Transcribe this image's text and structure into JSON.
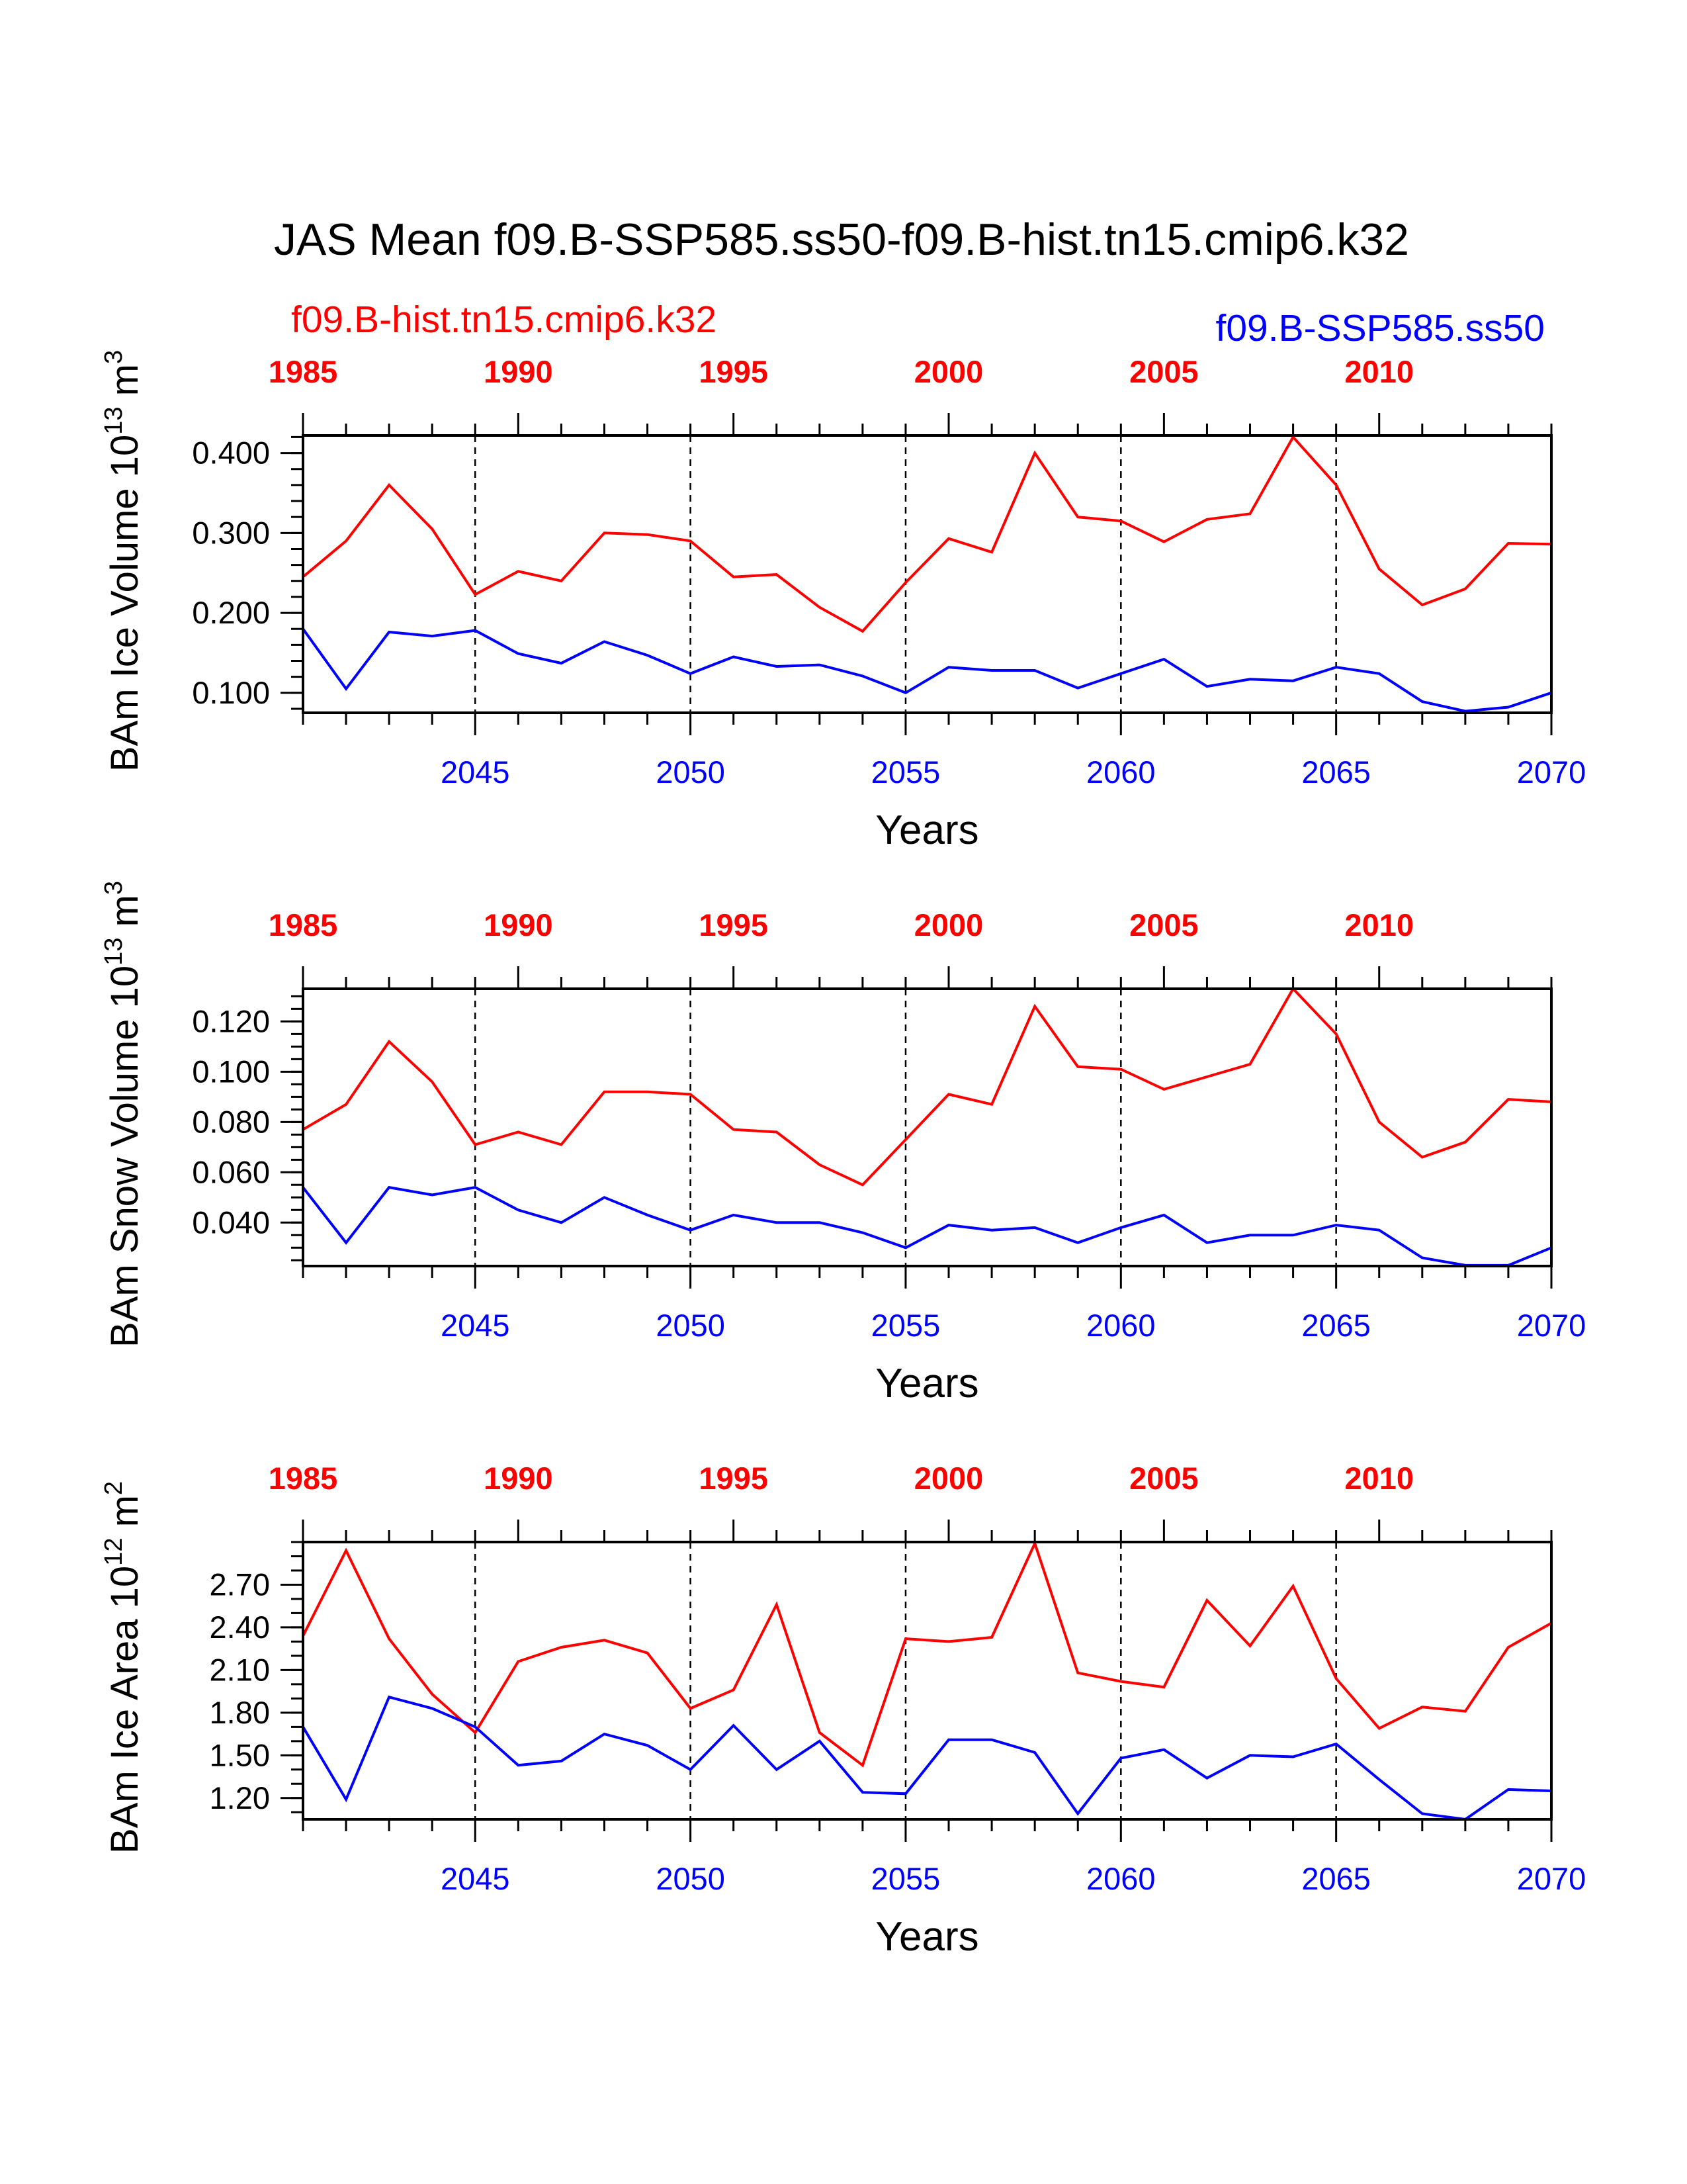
{
  "header": {
    "title": "JAS Mean f09.B-SSP585.ss50-f09.B-hist.tn15.cmip6.k32",
    "hist_label": "f09.B-hist.tn15.cmip6.k32",
    "ssp_label": "f09.B-SSP585.ss50"
  },
  "colors": {
    "hist": "#ff0000",
    "ssp": "#0000ff",
    "axis": "#000000",
    "background": "#ffffff"
  },
  "chart_data": [
    {
      "type": "line",
      "ylabel_text": "BAm Ice Volume 10",
      "ylabel_exp": "13",
      "ylabel_unit": " m",
      "ylabel_unit_exp": "3",
      "xlabel": "Years",
      "ylim": [
        0.075,
        0.422
      ],
      "yticks": [
        0.1,
        0.2,
        0.3,
        0.4
      ],
      "ytick_labels": [
        "0.100",
        "0.200",
        "0.300",
        "0.400"
      ],
      "yminor": 0.02,
      "x_bottom": {
        "range": [
          2041,
          2070
        ],
        "ticks": [
          2045,
          2050,
          2055,
          2060,
          2065,
          2070
        ],
        "labels": [
          "2045",
          "2050",
          "2055",
          "2060",
          "2065",
          "2070"
        ]
      },
      "x_top": {
        "ticks": [
          1985,
          1990,
          1995,
          2000,
          2005,
          2010
        ],
        "labels": [
          "1985",
          "1990",
          "1995",
          "2000",
          "2005",
          "2010"
        ]
      },
      "dashed_at": [
        2045,
        2050,
        2055,
        2060,
        2065
      ],
      "x": [
        2041,
        2042,
        2043,
        2044,
        2045,
        2046,
        2047,
        2048,
        2049,
        2050,
        2051,
        2052,
        2053,
        2054,
        2055,
        2056,
        2057,
        2058,
        2059,
        2060,
        2061,
        2062,
        2063,
        2064,
        2065,
        2066,
        2067,
        2068,
        2069,
        2070
      ],
      "series": [
        {
          "name": "f09.B-hist.tn15.cmip6.k32",
          "color": "#ff0000",
          "values": [
            0.245,
            0.29,
            0.36,
            0.305,
            0.223,
            0.252,
            0.24,
            0.3,
            0.298,
            0.29,
            0.245,
            0.248,
            0.207,
            0.177,
            0.238,
            0.293,
            0.276,
            0.4,
            0.32,
            0.315,
            0.289,
            0.317,
            0.324,
            0.42,
            0.36,
            0.255,
            0.21,
            0.23,
            0.287,
            0.286
          ]
        },
        {
          "name": "f09.B-SSP585.ss50",
          "color": "#0000ff",
          "values": [
            0.18,
            0.105,
            0.176,
            0.171,
            0.178,
            0.149,
            0.137,
            0.164,
            0.147,
            0.124,
            0.145,
            0.133,
            0.135,
            0.121,
            0.1,
            0.132,
            0.128,
            0.128,
            0.106,
            0.124,
            0.142,
            0.108,
            0.117,
            0.115,
            0.132,
            0.124,
            0.089,
            0.077,
            0.082,
            0.1
          ]
        }
      ]
    },
    {
      "type": "line",
      "ylabel_text": "BAm Snow Volume 10",
      "ylabel_exp": "13",
      "ylabel_unit": " m",
      "ylabel_unit_exp": "3",
      "xlabel": "Years",
      "ylim": [
        0.0227,
        0.133
      ],
      "yticks": [
        0.04,
        0.06,
        0.08,
        0.1,
        0.12
      ],
      "ytick_labels": [
        "0.040",
        "0.060",
        "0.080",
        "0.100",
        "0.120"
      ],
      "yminor": 0.005,
      "x_bottom": {
        "range": [
          2041,
          2070
        ],
        "ticks": [
          2045,
          2050,
          2055,
          2060,
          2065,
          2070
        ],
        "labels": [
          "2045",
          "2050",
          "2055",
          "2060",
          "2065",
          "2070"
        ]
      },
      "x_top": {
        "ticks": [
          1985,
          1990,
          1995,
          2000,
          2005,
          2010
        ],
        "labels": [
          "1985",
          "1990",
          "1995",
          "2000",
          "2005",
          "2010"
        ]
      },
      "dashed_at": [
        2045,
        2050,
        2055,
        2060,
        2065
      ],
      "x": [
        2041,
        2042,
        2043,
        2044,
        2045,
        2046,
        2047,
        2048,
        2049,
        2050,
        2051,
        2052,
        2053,
        2054,
        2055,
        2056,
        2057,
        2058,
        2059,
        2060,
        2061,
        2062,
        2063,
        2064,
        2065,
        2066,
        2067,
        2068,
        2069,
        2070
      ],
      "series": [
        {
          "name": "f09.B-hist.tn15.cmip6.k32",
          "color": "#ff0000",
          "values": [
            0.077,
            0.087,
            0.112,
            0.096,
            0.071,
            0.076,
            0.071,
            0.092,
            0.092,
            0.091,
            0.077,
            0.076,
            0.063,
            0.055,
            0.073,
            0.091,
            0.087,
            0.126,
            0.102,
            0.101,
            0.093,
            0.098,
            0.103,
            0.133,
            0.115,
            0.08,
            0.066,
            0.072,
            0.089,
            0.088
          ]
        },
        {
          "name": "f09.B-SSP585.ss50",
          "color": "#0000ff",
          "values": [
            0.054,
            0.032,
            0.054,
            0.051,
            0.054,
            0.045,
            0.04,
            0.05,
            0.043,
            0.037,
            0.043,
            0.04,
            0.04,
            0.036,
            0.03,
            0.039,
            0.037,
            0.038,
            0.032,
            0.038,
            0.043,
            0.032,
            0.035,
            0.035,
            0.039,
            0.037,
            0.026,
            0.023,
            0.023,
            0.03
          ]
        }
      ]
    },
    {
      "type": "line",
      "ylabel_text": "BAm Ice Area 10",
      "ylabel_exp": "12",
      "ylabel_unit": " m",
      "ylabel_unit_exp": "2",
      "xlabel": "Years",
      "ylim": [
        1.05,
        3.0
      ],
      "yticks": [
        1.2,
        1.5,
        1.8,
        2.1,
        2.4,
        2.7
      ],
      "ytick_labels": [
        "1.20",
        "1.50",
        "1.80",
        "2.10",
        "2.40",
        "2.70"
      ],
      "yminor": 0.1,
      "x_bottom": {
        "range": [
          2041,
          2070
        ],
        "ticks": [
          2045,
          2050,
          2055,
          2060,
          2065,
          2070
        ],
        "labels": [
          "2045",
          "2050",
          "2055",
          "2060",
          "2065",
          "2070"
        ]
      },
      "x_top": {
        "ticks": [
          1985,
          1990,
          1995,
          2000,
          2005,
          2010
        ],
        "labels": [
          "1985",
          "1990",
          "1995",
          "2000",
          "2005",
          "2010"
        ]
      },
      "dashed_at": [
        2045,
        2050,
        2055,
        2060,
        2065
      ],
      "x": [
        2041,
        2042,
        2043,
        2044,
        2045,
        2046,
        2047,
        2048,
        2049,
        2050,
        2051,
        2052,
        2053,
        2054,
        2055,
        2056,
        2057,
        2058,
        2059,
        2060,
        2061,
        2062,
        2063,
        2064,
        2065,
        2066,
        2067,
        2068,
        2069,
        2070
      ],
      "series": [
        {
          "name": "f09.B-hist.tn15.cmip6.k32",
          "color": "#ff0000",
          "values": [
            2.34,
            2.94,
            2.32,
            1.93,
            1.66,
            2.16,
            2.26,
            2.31,
            2.22,
            1.83,
            1.96,
            2.56,
            1.66,
            1.43,
            2.32,
            2.3,
            2.33,
            2.99,
            2.08,
            2.02,
            1.98,
            2.59,
            2.27,
            2.69,
            2.04,
            1.69,
            1.84,
            1.81,
            2.26,
            2.43
          ]
        },
        {
          "name": "f09.B-SSP585.ss50",
          "color": "#0000ff",
          "values": [
            1.7,
            1.19,
            1.91,
            1.83,
            1.7,
            1.43,
            1.46,
            1.65,
            1.57,
            1.4,
            1.71,
            1.4,
            1.6,
            1.24,
            1.23,
            1.61,
            1.61,
            1.52,
            1.09,
            1.48,
            1.54,
            1.34,
            1.5,
            1.49,
            1.58,
            1.33,
            1.09,
            1.05,
            1.26,
            1.25
          ]
        }
      ]
    }
  ]
}
